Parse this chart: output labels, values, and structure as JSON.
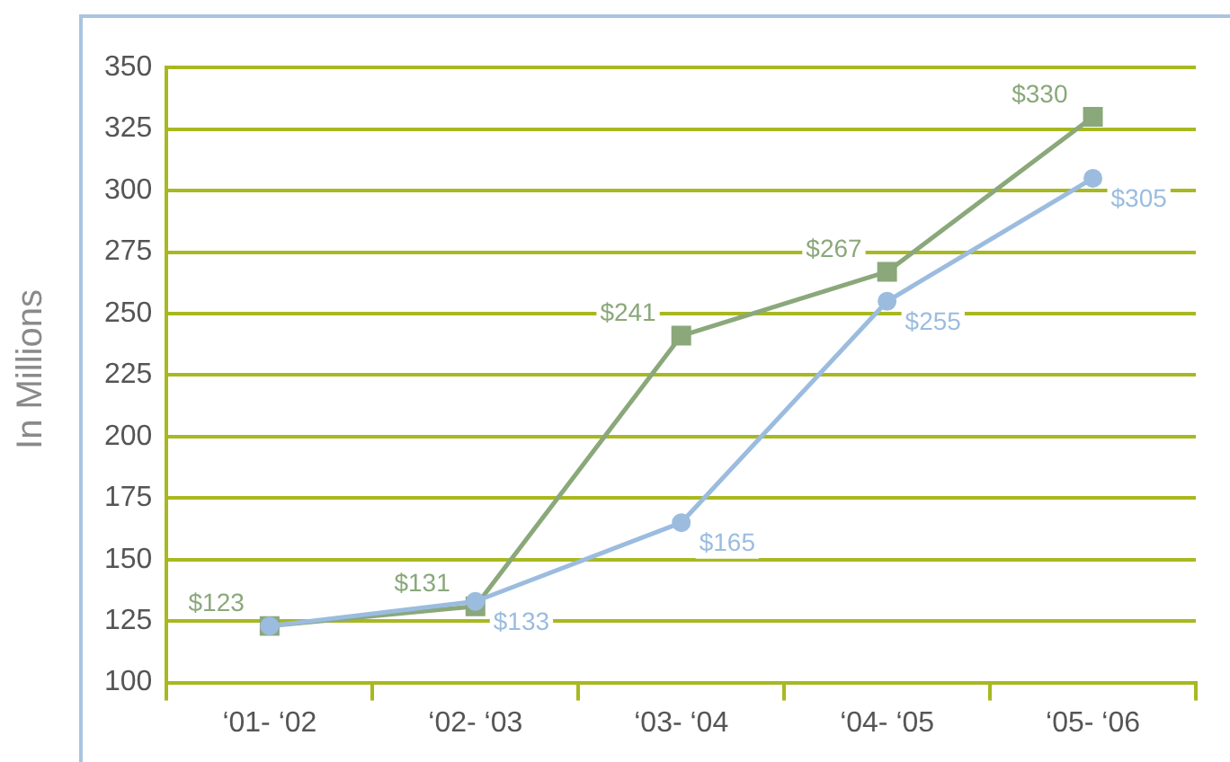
{
  "chart_data": {
    "type": "line",
    "ylabel": "In Millions",
    "categories": [
      "‘01- ‘02",
      "‘02- ‘03",
      "‘03- ‘04",
      "‘04- ‘05",
      "‘05- ‘06"
    ],
    "series": [
      {
        "color": "#8aa87a",
        "marker": "square",
        "values": [
          123,
          131,
          241,
          267,
          330
        ],
        "value_labels": [
          "$123",
          "$131",
          "$241",
          "$267",
          "$330"
        ]
      },
      {
        "color": "#9bbcdf",
        "marker": "circle",
        "values": [
          123,
          133,
          165,
          255,
          305
        ],
        "value_labels": [
          null,
          "$133",
          "$165",
          "$255",
          "$305"
        ]
      }
    ],
    "ylim": [
      100,
      350
    ],
    "yticks": [
      100,
      125,
      150,
      175,
      200,
      225,
      250,
      275,
      300,
      325,
      350
    ],
    "grid": "y",
    "legend": false,
    "line_style": "solid"
  }
}
